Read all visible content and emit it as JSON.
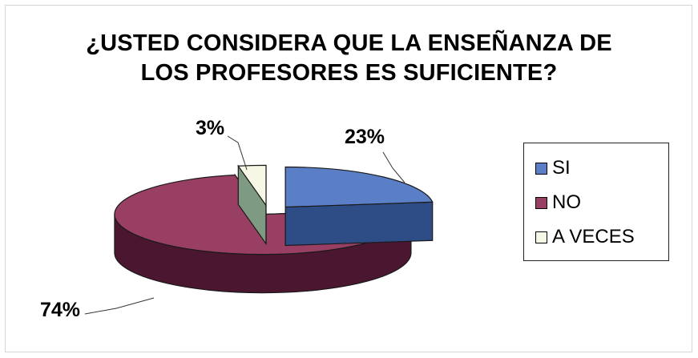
{
  "chart_data": {
    "type": "pie",
    "title": "¿USTED CONSIDERA QUE LA ENSEÑANZA DE LOS PROFESORES ES SUFICIENTE?",
    "title_lines": [
      "¿USTED CONSIDERA QUE LA ENSEÑANZA DE",
      "LOS PROFESORES ES SUFICIENTE?"
    ],
    "style": "3d-exploded",
    "legend_position": "right",
    "slices": [
      {
        "label": "SI",
        "value": 23,
        "display": "23%",
        "color": "#5b7fc6",
        "side_color": "#2e4c86"
      },
      {
        "label": "NO",
        "value": 74,
        "display": "74%",
        "color": "#9a3f64",
        "side_color": "#4a1630"
      },
      {
        "label": "A VECES",
        "value": 3,
        "display": "3%",
        "color": "#f7f7e6",
        "side_color": "#7e9a82"
      }
    ]
  }
}
